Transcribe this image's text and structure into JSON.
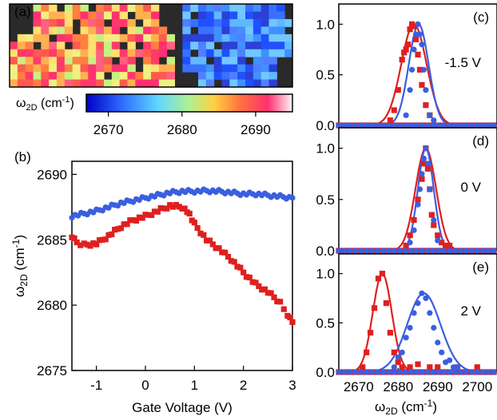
{
  "colors": {
    "blue": "#3a5fe0",
    "red": "#e01f1f",
    "map_background": "#2a2a2a",
    "axis": "#000000"
  },
  "panel_a": {
    "label": "(a)",
    "colorbar_label_main": "ω",
    "colorbar_label_sub": "2D",
    "colorbar_label_unit": " (cm",
    "colorbar_label_sup": "-1",
    "colorbar_label_end": ")",
    "colorbar_ticks": [
      "2670",
      "2680",
      "2690"
    ],
    "colorbar_range": [
      2667,
      2695
    ]
  },
  "chart_data": [
    {
      "id": "b",
      "type": "scatter",
      "panel_label": "(b)",
      "xlabel": "Gate Voltage (V)",
      "ylabel_main": "ω",
      "ylabel_sub": "2D",
      "ylabel_unit": " (cm",
      "ylabel_sup": "-1",
      "ylabel_end": ")",
      "xlim": [
        -1.5,
        3.0
      ],
      "ylim": [
        2675,
        2691
      ],
      "xticks": [
        -1,
        0,
        1,
        2,
        3
      ],
      "yticks": [
        2675,
        2680,
        2685,
        2690
      ],
      "series": [
        {
          "color": "blue",
          "marker": "circle",
          "points": [
            [
              -1.5,
              2686.8
            ],
            [
              -1.25,
              2687.0
            ],
            [
              -1.0,
              2687.2
            ],
            [
              -0.75,
              2687.5
            ],
            [
              -0.5,
              2687.8
            ],
            [
              -0.25,
              2688.0
            ],
            [
              0.0,
              2688.2
            ],
            [
              0.25,
              2688.4
            ],
            [
              0.5,
              2688.6
            ],
            [
              0.75,
              2688.7
            ],
            [
              1.0,
              2688.7
            ],
            [
              1.25,
              2688.75
            ],
            [
              1.5,
              2688.7
            ],
            [
              1.75,
              2688.6
            ],
            [
              2.0,
              2688.5
            ],
            [
              2.25,
              2688.5
            ],
            [
              2.5,
              2688.4
            ],
            [
              2.75,
              2688.3
            ],
            [
              3.0,
              2688.2
            ]
          ]
        },
        {
          "color": "red",
          "marker": "square",
          "points": [
            [
              -1.5,
              2685.3
            ],
            [
              -1.4,
              2684.8
            ],
            [
              -1.25,
              2684.6
            ],
            [
              -1.0,
              2684.7
            ],
            [
              -0.75,
              2685.3
            ],
            [
              -0.5,
              2686.0
            ],
            [
              -0.25,
              2686.5
            ],
            [
              0.0,
              2686.8
            ],
            [
              0.25,
              2687.2
            ],
            [
              0.5,
              2687.6
            ],
            [
              0.75,
              2687.5
            ],
            [
              0.9,
              2687.0
            ],
            [
              1.0,
              2686.2
            ],
            [
              1.25,
              2685.0
            ],
            [
              1.5,
              2684.3
            ],
            [
              1.75,
              2683.5
            ],
            [
              2.0,
              2682.5
            ],
            [
              2.25,
              2681.6
            ],
            [
              2.5,
              2681.0
            ],
            [
              2.75,
              2680.2
            ],
            [
              2.9,
              2679.3
            ],
            [
              3.0,
              2678.7
            ]
          ]
        }
      ]
    },
    {
      "id": "c",
      "type": "scatter",
      "panel_label": "(c)",
      "annotation": "-1.5 V",
      "xlim": [
        2665,
        2705
      ],
      "ylim": [
        0,
        1.2
      ],
      "yticks": [
        "0.0",
        "0.5",
        "1.0"
      ],
      "fits": [
        {
          "color": "red",
          "center": 2684.0,
          "sigma": 3.2
        },
        {
          "color": "blue",
          "center": 2685.2,
          "sigma": 2.5
        }
      ],
      "series": [
        {
          "color": "red",
          "marker": "square",
          "points": [
            [
              2680,
              0.35
            ],
            [
              2681,
              0.65
            ],
            [
              2681.5,
              0.72
            ],
            [
              2682,
              0.75
            ],
            [
              2682.5,
              0.8
            ],
            [
              2683,
              0.95
            ],
            [
              2683.5,
              1.0
            ],
            [
              2684,
              0.98
            ],
            [
              2684.5,
              0.85
            ],
            [
              2685,
              0.7
            ],
            [
              2685.5,
              0.55
            ],
            [
              2686,
              0.4
            ],
            [
              2687,
              0.2
            ],
            [
              2688,
              0.1
            ],
            [
              2679,
              0.15
            ],
            [
              2678,
              0.05
            ]
          ]
        },
        {
          "color": "blue",
          "marker": "circle",
          "points": [
            [
              2682,
              0.1
            ],
            [
              2683,
              0.35
            ],
            [
              2683.5,
              0.55
            ],
            [
              2684,
              0.75
            ],
            [
              2684.5,
              0.9
            ],
            [
              2685,
              1.0
            ],
            [
              2685.5,
              0.9
            ],
            [
              2686,
              0.8
            ],
            [
              2686.5,
              0.55
            ],
            [
              2687,
              0.35
            ],
            [
              2688,
              0.1
            ],
            [
              2689,
              0.05
            ]
          ]
        }
      ]
    },
    {
      "id": "d",
      "type": "scatter",
      "panel_label": "(d)",
      "annotation": "0 V",
      "xlim": [
        2665,
        2705
      ],
      "ylim": [
        0,
        1.2
      ],
      "yticks": [
        "0.0",
        "0.5",
        "1.0"
      ],
      "fits": [
        {
          "color": "red",
          "center": 2687.0,
          "sigma": 2.6
        },
        {
          "color": "blue",
          "center": 2687.0,
          "sigma": 2.0
        }
      ],
      "series": [
        {
          "color": "red",
          "marker": "square",
          "points": [
            [
              2682,
              0.05
            ],
            [
              2683,
              0.15
            ],
            [
              2684,
              0.3
            ],
            [
              2685,
              0.5
            ],
            [
              2686,
              0.7
            ],
            [
              2686.5,
              0.85
            ],
            [
              2687,
              1.0
            ],
            [
              2687.5,
              0.8
            ],
            [
              2688,
              0.6
            ],
            [
              2688.5,
              0.35
            ],
            [
              2689,
              0.25
            ],
            [
              2690,
              0.15
            ],
            [
              2691,
              0.08
            ],
            [
              2692,
              0.05
            ],
            [
              2693,
              0.05
            ]
          ]
        },
        {
          "color": "blue",
          "marker": "circle",
          "points": [
            [
              2683,
              0.08
            ],
            [
              2684,
              0.2
            ],
            [
              2685,
              0.45
            ],
            [
              2685.5,
              0.6
            ],
            [
              2686,
              0.75
            ],
            [
              2686.5,
              0.9
            ],
            [
              2687,
              1.0
            ],
            [
              2687.5,
              0.85
            ],
            [
              2688,
              0.6
            ],
            [
              2689,
              0.3
            ],
            [
              2690,
              0.1
            ]
          ]
        }
      ]
    },
    {
      "id": "e",
      "type": "scatter",
      "panel_label": "(e)",
      "annotation": "2 V",
      "xlabel_main": "ω",
      "xlabel_sub": "2D",
      "xlabel_unit": " (cm",
      "xlabel_sup": "-1",
      "xlabel_end": ")",
      "xlim": [
        2665,
        2705
      ],
      "ylim": [
        0,
        1.2
      ],
      "xticks": [
        2670,
        2680,
        2690,
        2700
      ],
      "yticks": [
        "0.0",
        "0.5",
        "1.0"
      ],
      "fits": [
        {
          "color": "red",
          "center": 2676.0,
          "sigma": 2.4
        },
        {
          "color": "blue",
          "center": 2686.5,
          "sigma": 4.2
        }
      ],
      "series": [
        {
          "color": "red",
          "marker": "square",
          "points": [
            [
              2671,
              0.05
            ],
            [
              2672,
              0.2
            ],
            [
              2673,
              0.4
            ],
            [
              2674,
              0.65
            ],
            [
              2675,
              0.95
            ],
            [
              2676,
              1.0
            ],
            [
              2677,
              0.7
            ],
            [
              2678,
              0.4
            ],
            [
              2679,
              0.2
            ],
            [
              2680,
              0.1
            ],
            [
              2681,
              0.05
            ],
            [
              2683,
              0.05
            ],
            [
              2685,
              0.08
            ],
            [
              2688,
              0.05
            ],
            [
              2690,
              0.05
            ],
            [
              2695,
              0.05
            ],
            [
              2700,
              0.05
            ]
          ]
        },
        {
          "color": "blue",
          "marker": "circle",
          "points": [
            [
              2679,
              0.05
            ],
            [
              2680,
              0.15
            ],
            [
              2681,
              0.2
            ],
            [
              2682,
              0.35
            ],
            [
              2683,
              0.45
            ],
            [
              2684,
              0.6
            ],
            [
              2685,
              0.7
            ],
            [
              2686,
              0.8
            ],
            [
              2687,
              0.75
            ],
            [
              2688,
              0.6
            ],
            [
              2689,
              0.45
            ],
            [
              2690,
              0.3
            ],
            [
              2691,
              0.2
            ],
            [
              2692,
              0.1
            ],
            [
              2693,
              0.12
            ],
            [
              2694,
              0.05
            ],
            [
              2695,
              0.05
            ]
          ]
        }
      ]
    }
  ]
}
